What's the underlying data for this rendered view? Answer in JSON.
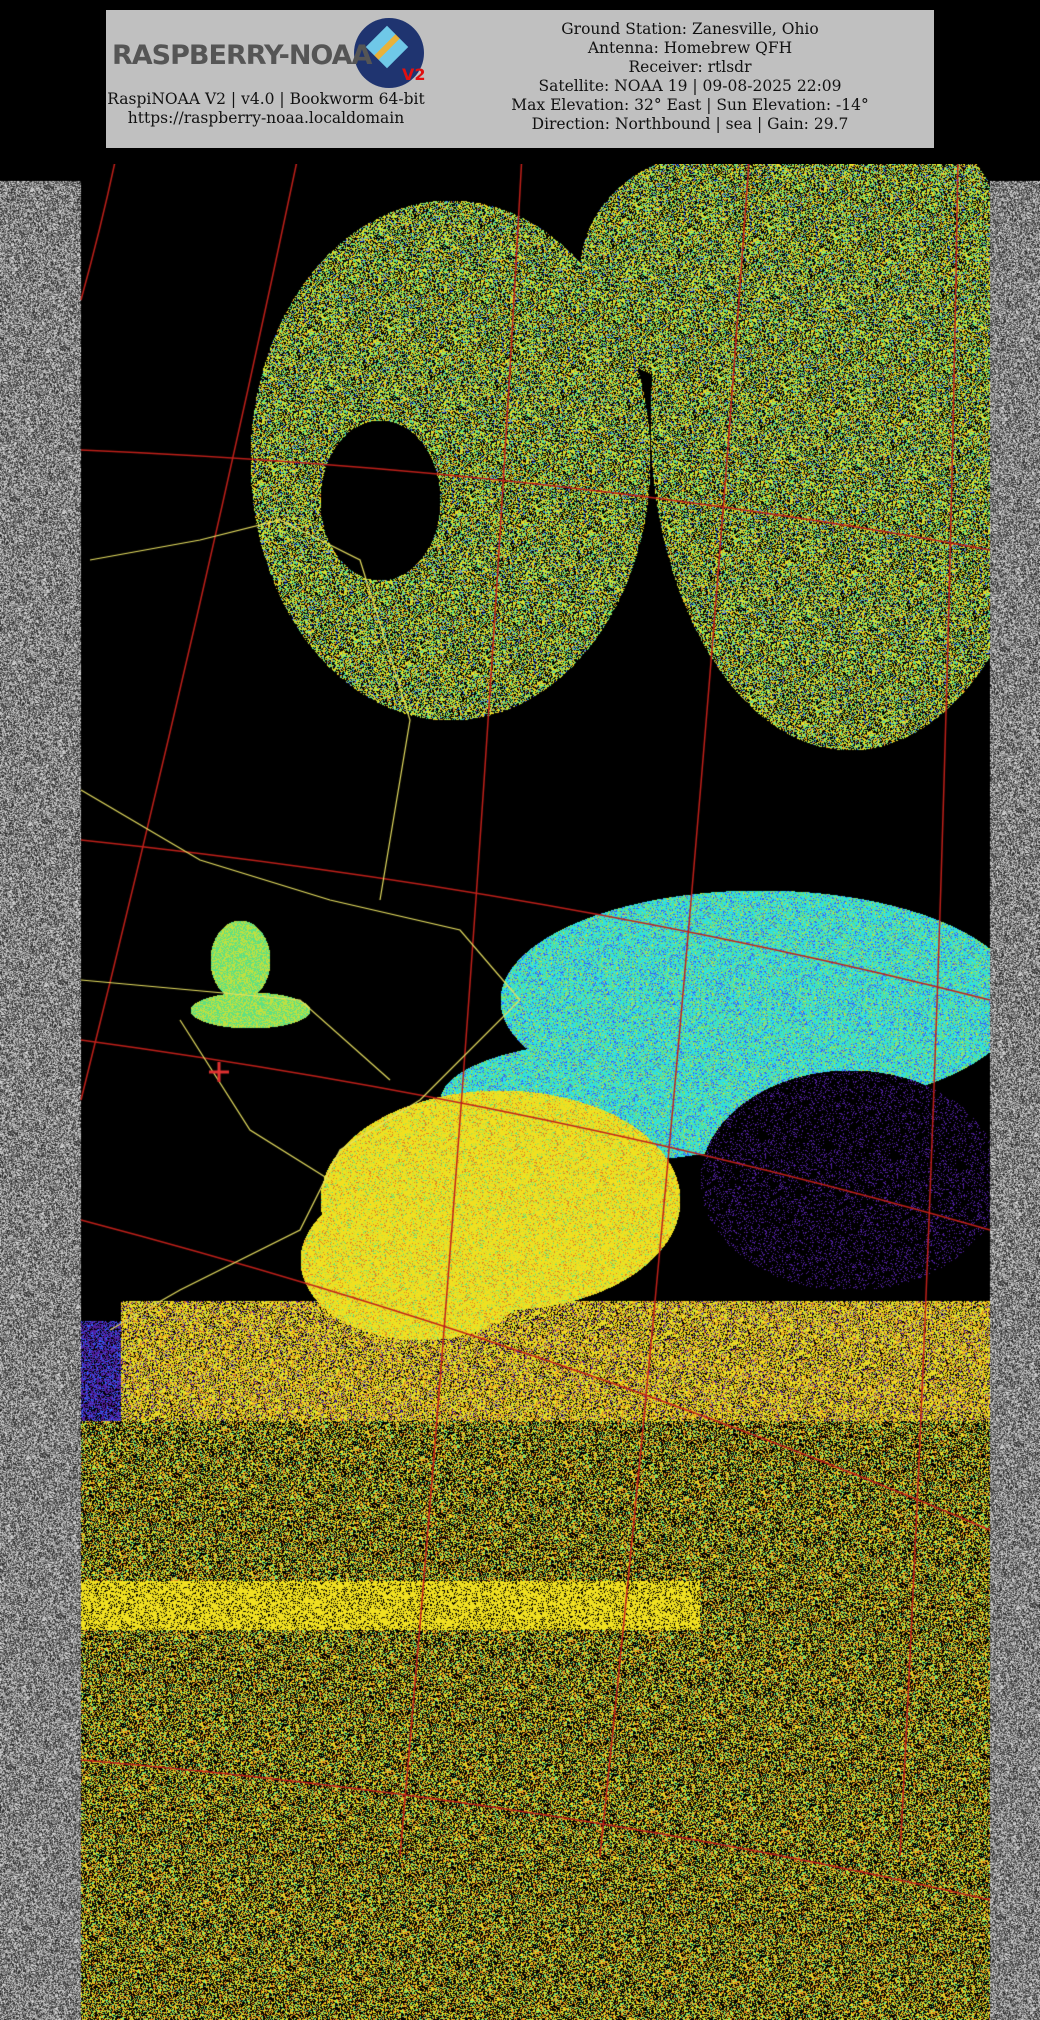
{
  "header": {
    "logo_text": "RASPBERRY-NOAA",
    "logo_badge": "V2",
    "left_lines": [
      "RaspiNOAA V2 | v4.0 | Bookworm 64-bit",
      "https://raspberry-noaa.localdomain"
    ],
    "right_lines": [
      "Ground Station: Zanesville, Ohio",
      "Antenna: Homebrew QFH",
      "Receiver: rtlsdr",
      "Satellite: NOAA 19 | 09-08-2025 22:09",
      "Max Elevation: 32° East | Sun Elevation: -14°",
      "Direction: Northbound | sea | Gain: 29.7"
    ]
  },
  "image": {
    "type": "NOAA APT sea surface temperature composite",
    "overlay_colors": {
      "grid": "#c0201a",
      "borders": "#e8e060",
      "marker": "#e03030"
    },
    "palette": [
      "#000000",
      "#5020a0",
      "#3060ff",
      "#30e0e0",
      "#60e080",
      "#c0e040",
      "#f0e020",
      "#e08020"
    ]
  }
}
